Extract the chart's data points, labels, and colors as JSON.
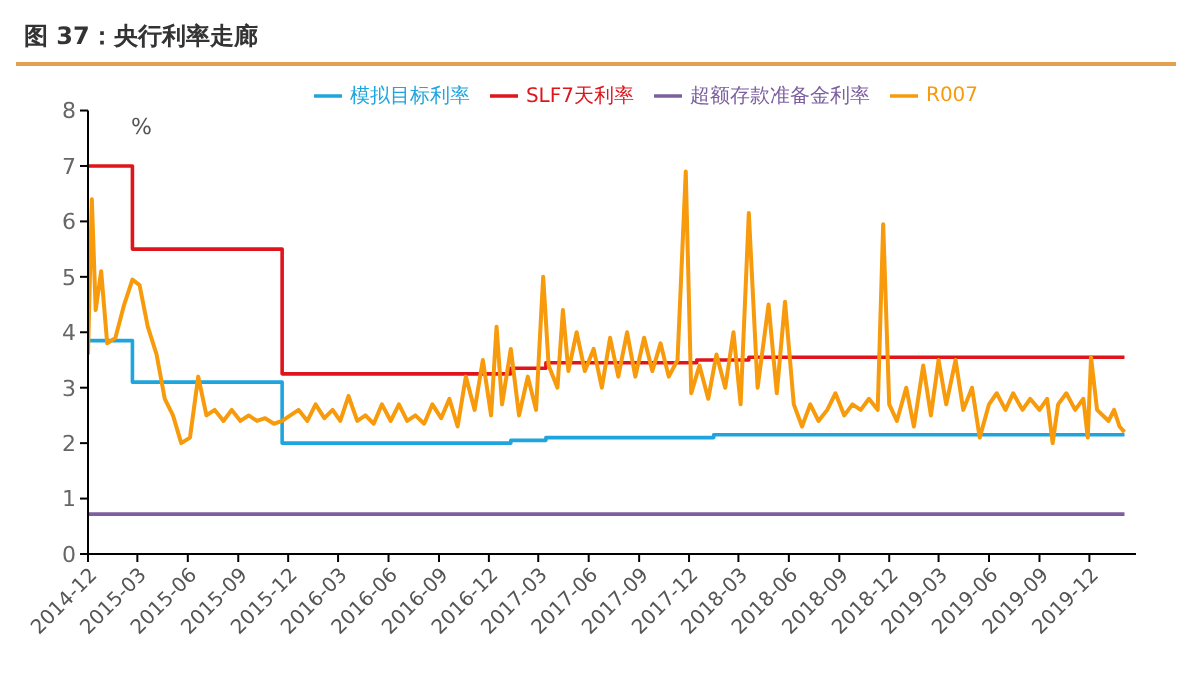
{
  "chart_data": {
    "type": "line",
    "title": "图 37：央行利率走廊",
    "ylabel": "%",
    "xlim": [
      "2014-12",
      "2020-02-24"
    ],
    "xticks": [
      "2014-12",
      "2015-03",
      "2015-06",
      "2015-09",
      "2015-12",
      "2016-03",
      "2016-06",
      "2016-09",
      "2016-12",
      "2017-03",
      "2017-06",
      "2017-09",
      "2017-12",
      "2018-03",
      "2018-06",
      "2018-09",
      "2018-12",
      "2019-03",
      "2019-06",
      "2019-09",
      "2019-12"
    ],
    "ylim": [
      0,
      8
    ],
    "yticks": [
      0,
      1,
      2,
      3,
      4,
      5,
      6,
      7,
      8
    ],
    "legend": "top",
    "marker": "none",
    "line_style": "solid",
    "series": [
      {
        "name": "模拟目标利率",
        "type": "step",
        "color": "#1fa5dd",
        "x": [
          "2014-12",
          "2015-02-20",
          "2015-11-20",
          "2017-01-10",
          "2017-03-15",
          "2018-01-15",
          "2020-02-03"
        ],
        "values": [
          3.85,
          3.1,
          2.0,
          2.05,
          2.1,
          2.15,
          2.15
        ]
      },
      {
        "name": "SLF7天利率",
        "type": "step",
        "color": "#e0141b",
        "x": [
          "2014-12",
          "2015-02-20",
          "2015-11-20",
          "2017-01-10",
          "2017-03-15",
          "2017-12-15",
          "2018-03-20",
          "2020-02-03"
        ],
        "values": [
          7,
          5.5,
          3.25,
          3.35,
          3.45,
          3.5,
          3.55,
          3.55
        ]
      },
      {
        "name": "超额存款准备金利率",
        "type": "step",
        "color": "#7d5fa0",
        "x": [
          "2014-12",
          "2020-02-03"
        ],
        "values": [
          0.72,
          0.72
        ]
      },
      {
        "name": "R007",
        "type": "line",
        "color": "#f79a0b",
        "x": [
          "2014-12-01",
          "2014-12-08",
          "2014-12-15",
          "2014-12-25",
          "2015-01-05",
          "2015-01-20",
          "2015-02-05",
          "2015-02-20",
          "2015-03-05",
          "2015-03-20",
          "2015-04-05",
          "2015-04-20",
          "2015-05-05",
          "2015-05-20",
          "2015-06-05",
          "2015-06-20",
          "2015-07-05",
          "2015-07-20",
          "2015-08-05",
          "2015-08-20",
          "2015-09-05",
          "2015-09-20",
          "2015-10-05",
          "2015-10-20",
          "2015-11-05",
          "2015-11-20",
          "2015-12-05",
          "2015-12-20",
          "2016-01-05",
          "2016-01-20",
          "2016-02-05",
          "2016-02-20",
          "2016-03-05",
          "2016-03-20",
          "2016-04-05",
          "2016-04-20",
          "2016-05-05",
          "2016-05-20",
          "2016-06-05",
          "2016-06-20",
          "2016-07-05",
          "2016-07-20",
          "2016-08-05",
          "2016-08-20",
          "2016-09-05",
          "2016-09-20",
          "2016-10-05",
          "2016-10-20",
          "2016-11-05",
          "2016-11-20",
          "2016-12-05",
          "2016-12-15",
          "2016-12-25",
          "2017-01-10",
          "2017-01-25",
          "2017-02-10",
          "2017-02-25",
          "2017-03-10",
          "2017-03-20",
          "2017-04-05",
          "2017-04-15",
          "2017-04-25",
          "2017-05-10",
          "2017-05-25",
          "2017-06-10",
          "2017-06-25",
          "2017-07-10",
          "2017-07-25",
          "2017-08-10",
          "2017-08-25",
          "2017-09-10",
          "2017-09-25",
          "2017-10-10",
          "2017-10-25",
          "2017-11-10",
          "2017-11-25",
          "2017-12-05",
          "2017-12-20",
          "2018-01-05",
          "2018-01-20",
          "2018-02-05",
          "2018-02-20",
          "2018-03-05",
          "2018-03-20",
          "2018-04-05",
          "2018-04-25",
          "2018-05-10",
          "2018-05-25",
          "2018-06-10",
          "2018-06-25",
          "2018-07-10",
          "2018-07-25",
          "2018-08-10",
          "2018-08-25",
          "2018-09-10",
          "2018-09-25",
          "2018-10-10",
          "2018-10-25",
          "2018-11-10",
          "2018-11-20",
          "2018-12-01",
          "2018-12-15",
          "2019-01-01",
          "2019-01-15",
          "2019-02-01",
          "2019-02-15",
          "2019-03-01",
          "2019-03-15",
          "2019-04-01",
          "2019-04-15",
          "2019-05-01",
          "2019-05-15",
          "2019-06-01",
          "2019-06-15",
          "2019-07-01",
          "2019-07-15",
          "2019-08-01",
          "2019-08-15",
          "2019-09-01",
          "2019-09-15",
          "2019-09-25",
          "2019-10-05",
          "2019-10-20",
          "2019-11-05",
          "2019-11-20",
          "2019-11-28",
          "2019-12-04",
          "2019-12-15",
          "2020-01-05",
          "2020-01-15",
          "2020-01-25",
          "2020-02-03"
        ],
        "values": [
          3.6,
          6.4,
          4.4,
          5.1,
          3.8,
          3.9,
          4.5,
          4.95,
          4.85,
          4.1,
          3.6,
          2.8,
          2.5,
          2.0,
          2.1,
          3.2,
          2.5,
          2.6,
          2.4,
          2.6,
          2.4,
          2.5,
          2.4,
          2.45,
          2.35,
          2.4,
          2.5,
          2.6,
          2.4,
          2.7,
          2.45,
          2.6,
          2.4,
          2.85,
          2.4,
          2.5,
          2.35,
          2.7,
          2.4,
          2.7,
          2.4,
          2.5,
          2.35,
          2.7,
          2.45,
          2.8,
          2.3,
          3.2,
          2.6,
          3.5,
          2.5,
          4.1,
          2.7,
          3.7,
          2.5,
          3.2,
          2.6,
          5.0,
          3.4,
          3.0,
          4.4,
          3.3,
          4.0,
          3.3,
          3.7,
          3.0,
          3.9,
          3.2,
          4.0,
          3.2,
          3.9,
          3.3,
          3.8,
          3.2,
          3.5,
          6.9,
          2.9,
          3.4,
          2.8,
          3.6,
          3.0,
          4.0,
          2.7,
          6.15,
          3.0,
          4.5,
          2.9,
          4.55,
          2.7,
          2.3,
          2.7,
          2.4,
          2.6,
          2.9,
          2.5,
          2.7,
          2.6,
          2.8,
          2.6,
          5.95,
          2.7,
          2.4,
          3.0,
          2.3,
          3.4,
          2.5,
          3.5,
          2.7,
          3.5,
          2.6,
          3.0,
          2.1,
          2.7,
          2.9,
          2.6,
          2.9,
          2.6,
          2.8,
          2.6,
          2.8,
          2.0,
          2.7,
          2.9,
          2.6,
          2.8,
          2.1,
          3.55,
          2.6,
          2.4,
          2.6,
          2.3,
          2.2
        ]
      }
    ]
  }
}
